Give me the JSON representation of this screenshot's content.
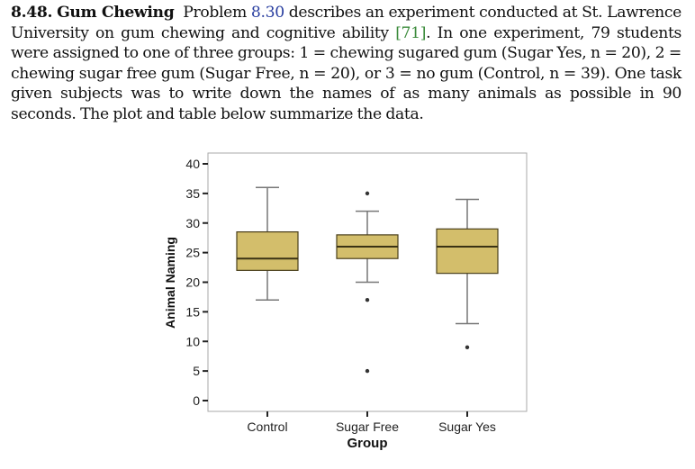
{
  "problem": {
    "number": "8.48.",
    "title": "Gum Chewing",
    "text_1": "Problem ",
    "ref_problem": "8.30",
    "text_2": " describes an experiment conducted at St. Lawrence University on gum chewing and cognitive ability ",
    "ref_citation": "[71]",
    "text_3": ". In one experiment, 79 students were assigned to one of three groups: 1 = chewing sugared gum (Sugar Yes, n = 20), 2 = chewing sugar free gum (Sugar Free, n = 20), or 3 = no gum (Control, n = 39). One task given subjects was to write down the names of as many animals as possible in 90 seconds. The plot and table below summarize the data."
  },
  "chart_data": {
    "type": "boxplot",
    "xlabel": "Group",
    "ylabel": "Animal Naming",
    "ylim": [
      0,
      40
    ],
    "yticks": [
      0,
      5,
      10,
      15,
      20,
      25,
      30,
      35,
      40
    ],
    "categories": [
      "Control",
      "Sugar Free",
      "Sugar Yes"
    ],
    "boxes": [
      {
        "group": "Control",
        "whisker_low": 17,
        "q1": 22,
        "median": 24,
        "q3": 28.5,
        "whisker_high": 36,
        "outliers": []
      },
      {
        "group": "Sugar Free",
        "whisker_low": 20,
        "q1": 24,
        "median": 26,
        "q3": 28,
        "whisker_high": 32,
        "outliers": [
          35,
          17,
          5
        ]
      },
      {
        "group": "Sugar Yes",
        "whisker_low": 13,
        "q1": 21.5,
        "median": 26,
        "q3": 29,
        "whisker_high": 34,
        "outliers": [
          9
        ]
      }
    ],
    "grid": false,
    "colors": {
      "box_fill": "#d3be6b",
      "box_edge": "#4a3f1a",
      "median": "#3a3214",
      "whisker": "#777777",
      "outlier": "#333333",
      "frame": "#aaaaaa"
    }
  }
}
